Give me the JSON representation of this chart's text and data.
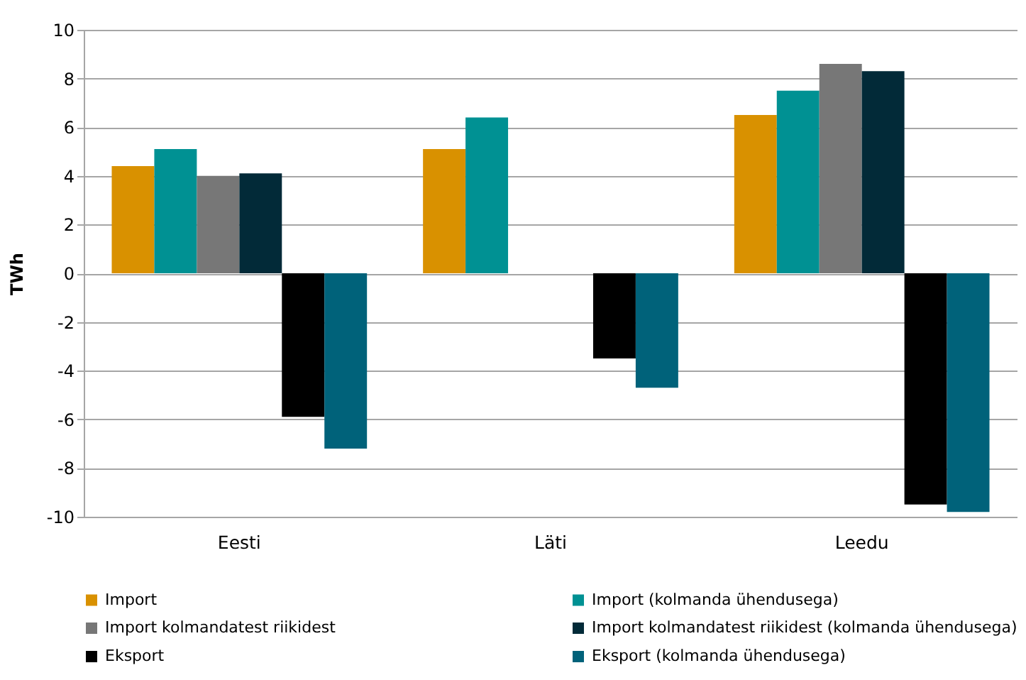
{
  "chart_data": {
    "type": "bar",
    "ylabel": "TWh",
    "categories": [
      "Eesti",
      "Läti",
      "Leedu"
    ],
    "series": [
      {
        "name": "Import",
        "color": "#d99100",
        "values": [
          4.4,
          5.1,
          6.5
        ]
      },
      {
        "name": "Import (kolmanda ühendusega)",
        "color": "#009193",
        "values": [
          5.1,
          6.4,
          7.5
        ]
      },
      {
        "name": "Import kolmandatest riikidest",
        "color": "#777777",
        "values": [
          4.0,
          null,
          8.6
        ]
      },
      {
        "name": "Import kolmandatest riikidest (kolmanda ühendusega)",
        "color": "#022a38",
        "values": [
          4.1,
          null,
          8.3
        ]
      },
      {
        "name": "Eksport",
        "color": "#000000",
        "values": [
          -5.9,
          -3.5,
          -9.5
        ]
      },
      {
        "name": "Eksport (kolmanda ühendusega)",
        "color": "#00627a",
        "values": [
          -7.2,
          -4.7,
          -9.8
        ]
      }
    ],
    "ylim": [
      -10,
      10
    ],
    "yticks": [
      -10,
      -8,
      -6,
      -4,
      -2,
      0,
      2,
      4,
      6,
      8,
      10
    ],
    "grid": "y",
    "legend": "bottom"
  }
}
